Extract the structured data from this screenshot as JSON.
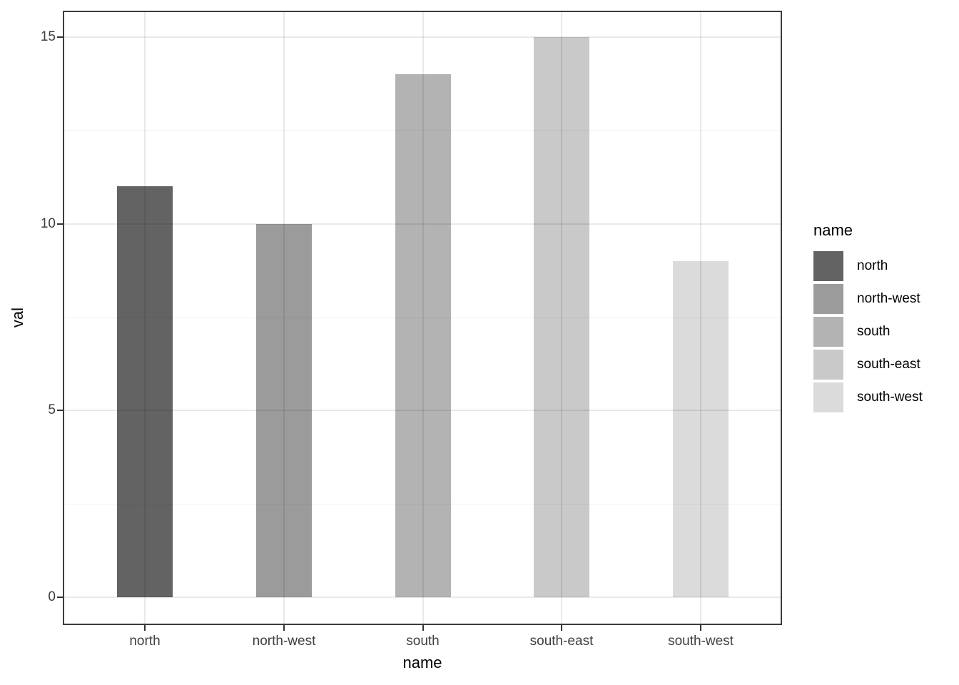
{
  "chart_data": {
    "type": "bar",
    "title": "",
    "xlabel": "name",
    "ylabel": "val",
    "categories": [
      "north",
      "north-west",
      "south",
      "south-east",
      "south-west"
    ],
    "values": [
      11,
      10,
      14,
      15,
      9
    ],
    "bar_colors": [
      "#636363",
      "#9B9B9B",
      "#B3B3B3",
      "#C9C9C9",
      "#DBDBDB"
    ],
    "ylim": [
      0,
      15
    ],
    "y_major_ticks": [
      0,
      5,
      10,
      15
    ],
    "y_minor_ticks": [
      2.5,
      7.5,
      12.5
    ],
    "y_tick_labels": [
      "0",
      "5",
      "10",
      "15"
    ],
    "grid": "on",
    "grid_over_bars": true,
    "legend_position": "right",
    "legend": {
      "title": "name",
      "entries": [
        {
          "label": "north",
          "color": "#636363"
        },
        {
          "label": "north-west",
          "color": "#9B9B9B"
        },
        {
          "label": "south",
          "color": "#B3B3B3"
        },
        {
          "label": "south-east",
          "color": "#C9C9C9"
        },
        {
          "label": "south-west",
          "color": "#DBDBDB"
        }
      ]
    },
    "colors": {
      "panel_border": "#3c3c3c",
      "tick_mark": "#333333",
      "tick_label_text": "#404040",
      "title_text": "#000000",
      "background": "#ffffff"
    }
  }
}
